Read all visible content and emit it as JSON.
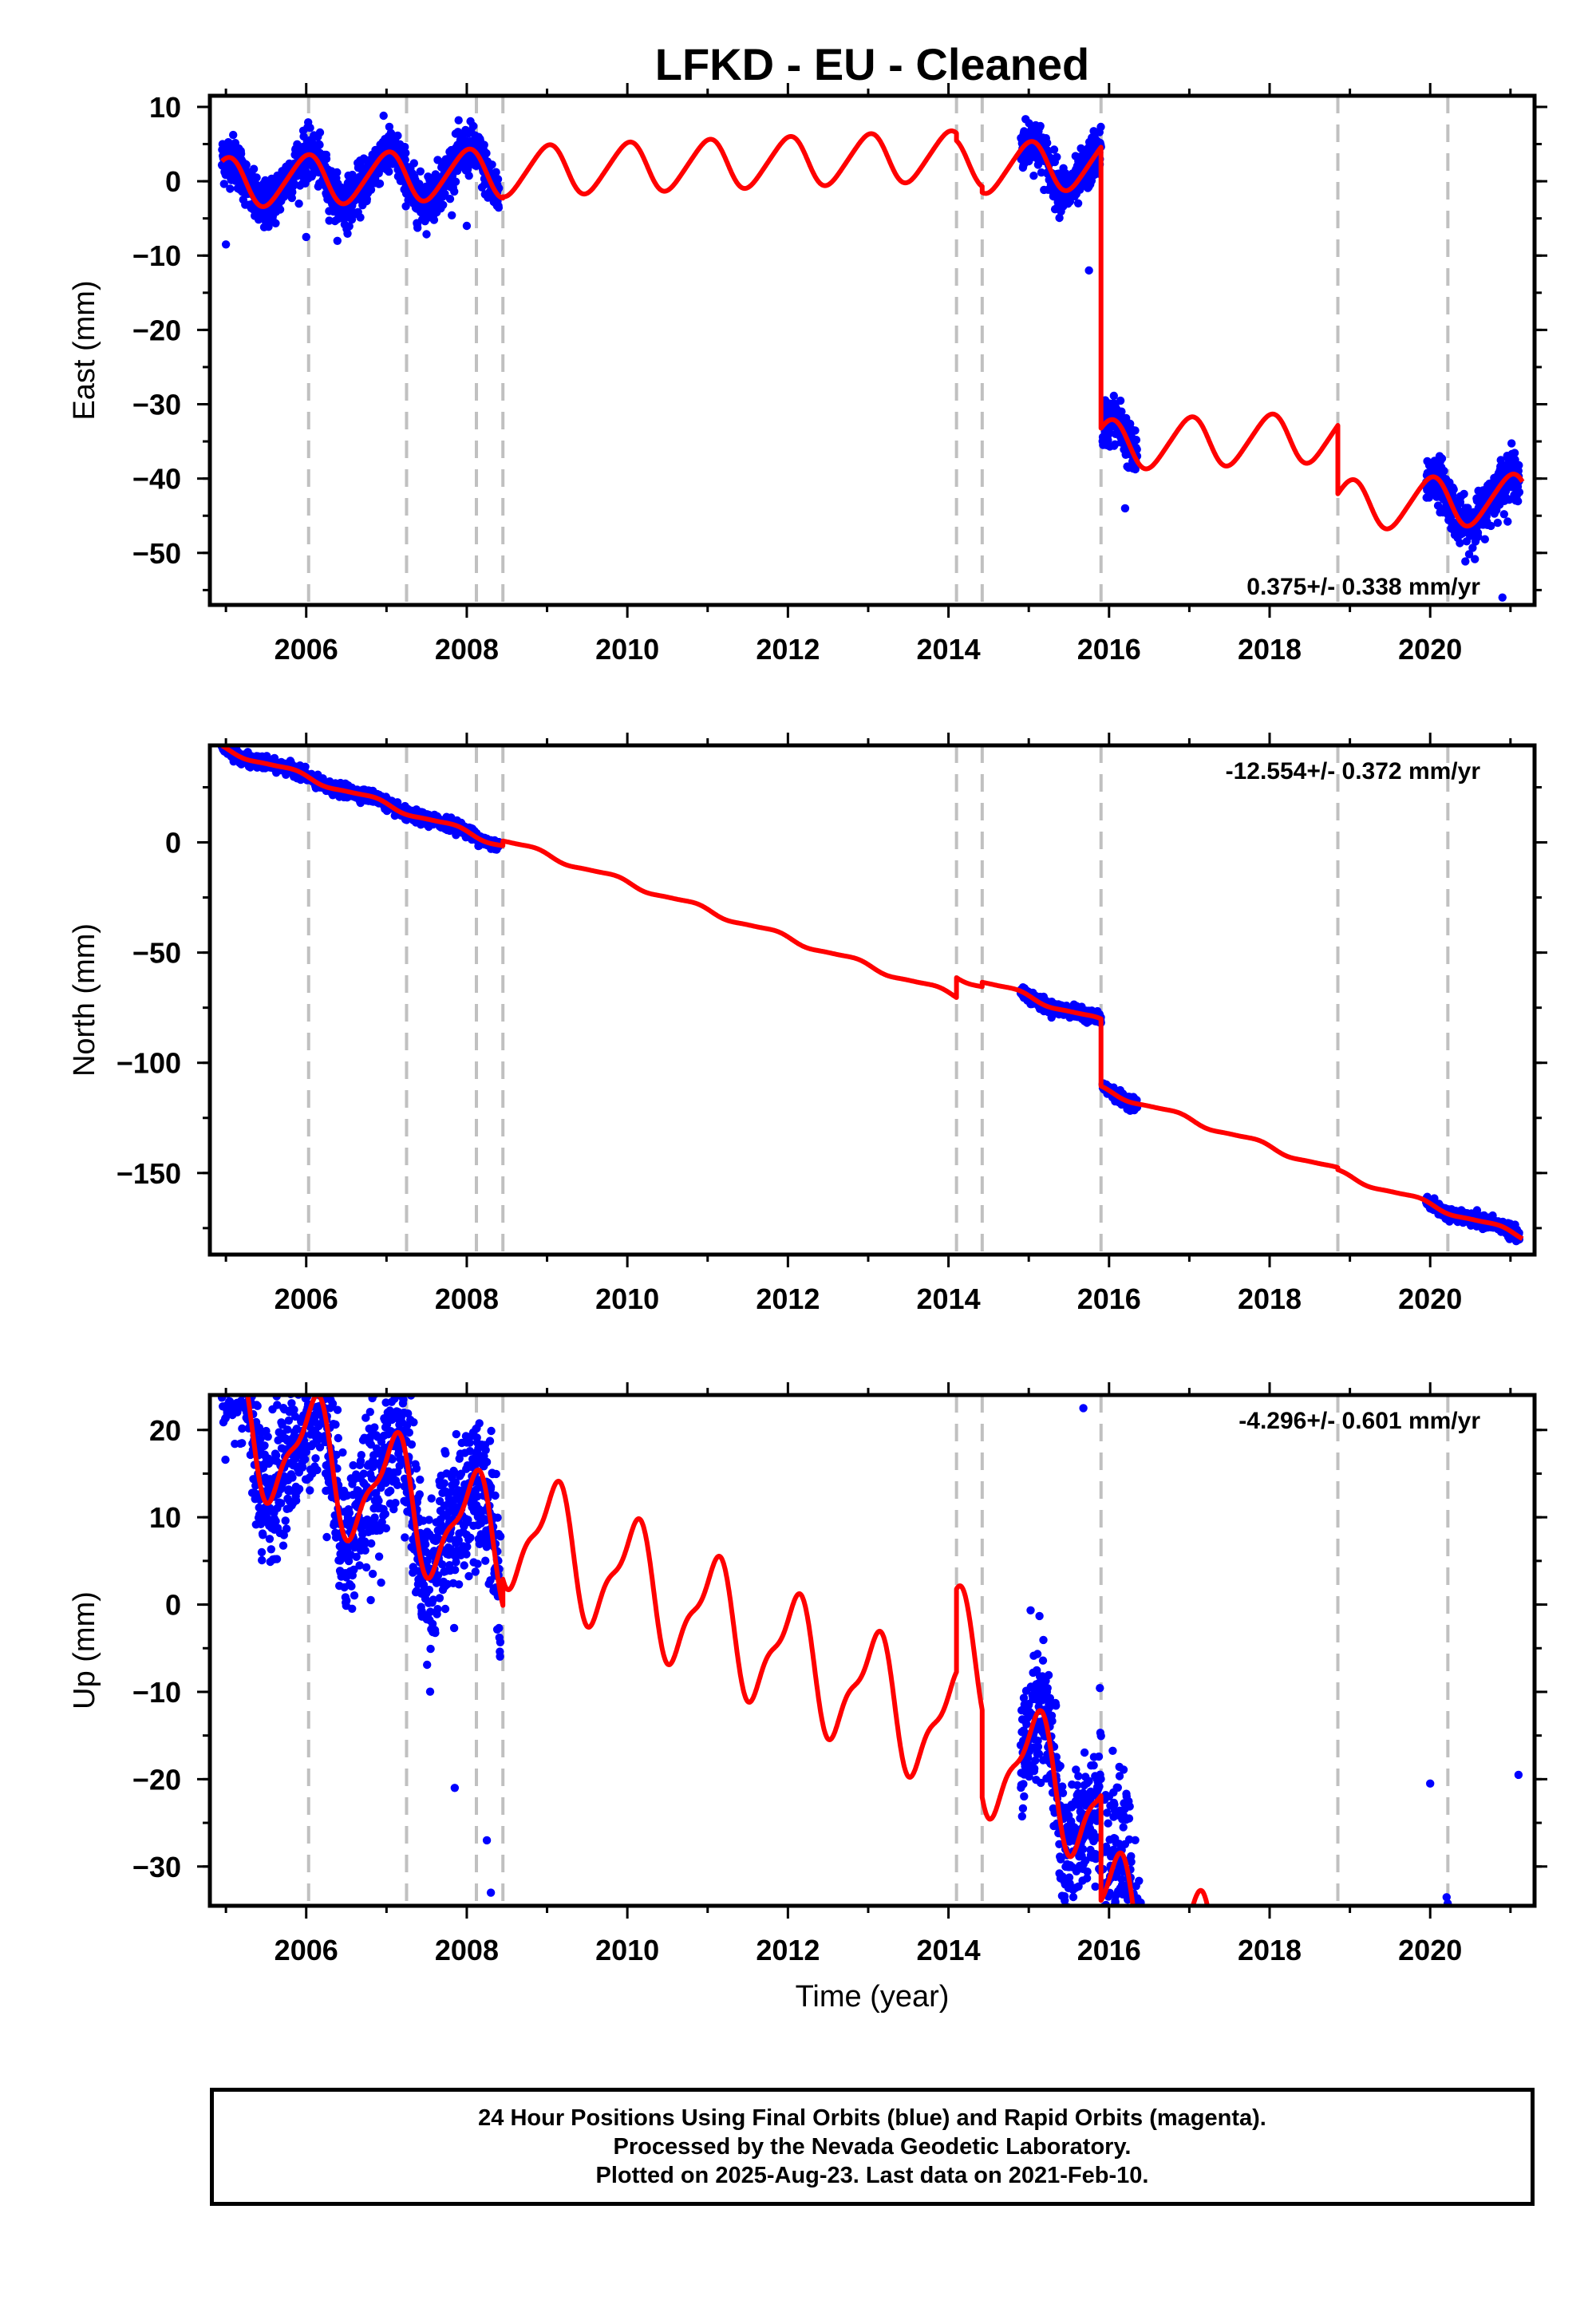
{
  "title": "LFKD  - EU - Cleaned",
  "xlabel": "Time (year)",
  "footer": [
    "24 Hour Positions Using Final Orbits (blue) and Rapid Orbits (magenta).",
    "Processed by the Nevada Geodetic Laboratory.",
    "Plotted on 2025-Aug-23. Last data on 2021-Feb-10."
  ],
  "colors": {
    "data": "#0000ff",
    "model": "#ff0000",
    "events": "#c0c0c0",
    "axis": "#000000"
  },
  "chart_data": [
    {
      "type": "scatter",
      "component": "east",
      "ylabel": "East (mm)",
      "rate": "0.375+/- 0.338 mm/yr",
      "xlim": [
        2004.8,
        2021.3
      ],
      "ylim": [
        -57,
        11.5
      ],
      "xticks": [
        2006,
        2008,
        2010,
        2012,
        2014,
        2016,
        2018,
        2020
      ],
      "yticks": [
        10,
        0,
        -10,
        -20,
        -30,
        -40,
        -50
      ],
      "event_lines": [
        2006.03,
        2007.25,
        2008.12,
        2008.45,
        2014.1,
        2014.42,
        2015.9,
        2018.85,
        2020.22
      ],
      "data_segments": [
        {
          "start": 2004.95,
          "end": 2008.4,
          "density": 1.0
        },
        {
          "start": 2014.9,
          "end": 2015.9,
          "density": 1.0
        },
        {
          "start": 2015.92,
          "end": 2016.35,
          "density": 1.0
        },
        {
          "start": 2019.95,
          "end": 2021.11,
          "density": 1.0
        }
      ],
      "model": {
        "pieces": [
          {
            "start": 2004.95,
            "end": 2008.45,
            "offset": 2.8
          },
          {
            "start": 2008.45,
            "end": 2014.1,
            "offset": 3.0
          },
          {
            "start": 2014.1,
            "end": 2014.42,
            "offset": 2.0
          },
          {
            "start": 2014.42,
            "end": 2015.9,
            "offset": 1.2
          },
          {
            "start": 2015.9,
            "end": 2018.85,
            "offset": -36.6
          },
          {
            "start": 2018.85,
            "end": 2021.15,
            "offset": -45.8
          }
        ],
        "slope": 0.375,
        "ref_year": 2013,
        "amplitude": 3.3,
        "semi_amplitude": 0.4,
        "phase_year": 0.5
      },
      "noise": 1.6,
      "outliers": [
        [
          2005.0,
          -8.5
        ],
        [
          2006.0,
          -7.5
        ],
        [
          2008.0,
          -6
        ],
        [
          2015.75,
          -12
        ],
        [
          2016.2,
          -44
        ],
        [
          2020.9,
          -56
        ]
      ]
    },
    {
      "type": "scatter",
      "component": "north",
      "ylabel": "North (mm)",
      "rate": "-12.554+/- 0.372 mm/yr",
      "xlim": [
        2004.8,
        2021.3
      ],
      "ylim": [
        -187,
        44
      ],
      "xticks": [
        2006,
        2008,
        2010,
        2012,
        2014,
        2016,
        2018,
        2020
      ],
      "yticks": [
        0,
        -50,
        -100,
        -150
      ],
      "event_lines": [
        2006.03,
        2007.25,
        2008.12,
        2008.45,
        2014.1,
        2014.42,
        2015.9,
        2018.85,
        2020.22
      ],
      "data_segments": [
        {
          "start": 2004.95,
          "end": 2008.4,
          "density": 1.0
        },
        {
          "start": 2014.9,
          "end": 2015.9,
          "density": 1.0
        },
        {
          "start": 2015.92,
          "end": 2016.35,
          "density": 1.0
        },
        {
          "start": 2019.95,
          "end": 2021.11,
          "density": 1.0
        }
      ],
      "model": {
        "pieces": [
          {
            "start": 2004.95,
            "end": 2008.45,
            "offset": -58.2
          },
          {
            "start": 2008.45,
            "end": 2014.1,
            "offset": -56.0
          },
          {
            "start": 2014.1,
            "end": 2014.42,
            "offset": -47.0
          },
          {
            "start": 2014.42,
            "end": 2015.9,
            "offset": -45.0
          },
          {
            "start": 2015.9,
            "end": 2018.85,
            "offset": -75.5
          },
          {
            "start": 2018.85,
            "end": 2021.15,
            "offset": -76.5
          }
        ],
        "slope": -12.554,
        "ref_year": 2013,
        "amplitude": 1.3,
        "semi_amplitude": 0.3,
        "phase_year": 0.3
      },
      "noise": 1.3,
      "outliers": []
    },
    {
      "type": "scatter",
      "component": "up",
      "ylabel": "Up (mm)",
      "rate": "-4.296+/- 0.601 mm/yr",
      "xlim": [
        2004.8,
        2021.3
      ],
      "ylim": [
        -34.5,
        24
      ],
      "xticks": [
        2006,
        2008,
        2010,
        2012,
        2014,
        2016,
        2018,
        2020
      ],
      "yticks": [
        20,
        10,
        0,
        -10,
        -20,
        -30
      ],
      "event_lines": [
        2006.03,
        2007.25,
        2008.12,
        2008.45,
        2014.1,
        2014.42,
        2015.9,
        2018.85,
        2020.22
      ],
      "data_segments": [
        {
          "start": 2004.95,
          "end": 2008.42,
          "density": 1.0
        },
        {
          "start": 2014.9,
          "end": 2015.9,
          "density": 1.0
        },
        {
          "start": 2015.92,
          "end": 2016.4,
          "density": 1.0
        },
        {
          "start": 2019.95,
          "end": 2021.11,
          "density": 1.0
        }
      ],
      "model": {
        "pieces": [
          {
            "start": 2004.95,
            "end": 2008.45,
            "offset": -13.0
          },
          {
            "start": 2008.45,
            "end": 2014.1,
            "offset": -10.0
          },
          {
            "start": 2014.1,
            "end": 2014.42,
            "offset": -0.5
          },
          {
            "start": 2014.42,
            "end": 2015.9,
            "offset": -10.5
          },
          {
            "start": 2015.9,
            "end": 2018.85,
            "offset": -22.5
          },
          {
            "start": 2018.85,
            "end": 2021.15,
            "offset": -21.0
          }
        ],
        "slope": -4.296,
        "ref_year": 2013,
        "amplitude": 6.5,
        "semi_amplitude": 2.2,
        "phase_year": 0.58
      },
      "noise": 4.2,
      "outliers": [
        [
          2015.68,
          22.5
        ],
        [
          2008.3,
          -33
        ],
        [
          2008.25,
          -27
        ],
        [
          2016.25,
          -24.5
        ],
        [
          2020.0,
          -20.5
        ],
        [
          2021.1,
          -19.5
        ],
        [
          2007.85,
          -21
        ]
      ]
    }
  ]
}
